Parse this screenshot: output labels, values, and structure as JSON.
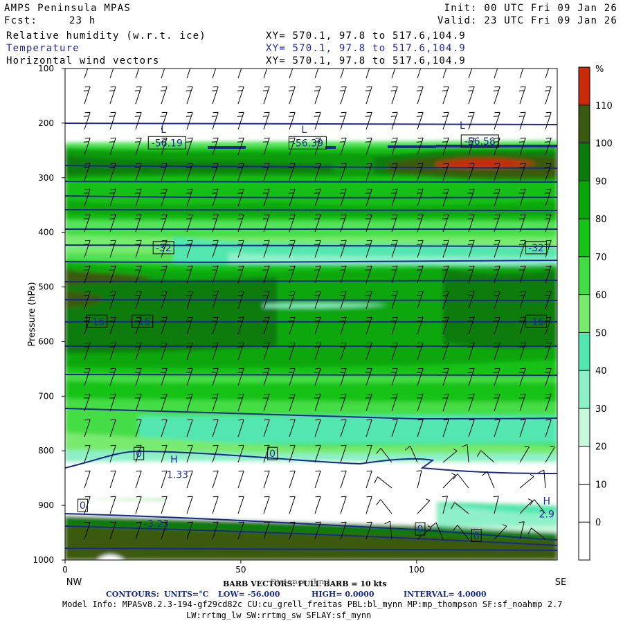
{
  "header": {
    "model": "AMPS Peninsula MPAS",
    "fcst_label": "Fcst:",
    "fcst_value": "23 h",
    "init": "Init: 00 UTC Fri 09 Jan 26",
    "valid": "Valid: 23 UTC Fri 09 Jan 26",
    "fields": [
      {
        "name": "Relative humidity (w.r.t. ice)",
        "xy": "XY= 570.1, 97.8 to 517.6,104.9"
      },
      {
        "name": "Temperature",
        "xy": "XY= 570.1, 97.8 to 517.6,104.9"
      },
      {
        "name": "Horizontal wind vectors",
        "xy": "XY= 570.1, 97.8 to 517.6,104.9"
      }
    ]
  },
  "chart_data": {
    "type": "heatmap",
    "ylabel": "Pressure (hPa)",
    "xlabel": "Distance (km)",
    "x_ticks": [
      0,
      50,
      100
    ],
    "xlim": [
      0,
      140
    ],
    "y_ticks": [
      100,
      200,
      300,
      400,
      500,
      600,
      700,
      800,
      900,
      1000
    ],
    "ylim": [
      1000,
      100
    ],
    "x_end_labels": {
      "left": "NW",
      "right": "SE"
    },
    "colorbar": {
      "unit": "%",
      "ticks": [
        0,
        10,
        20,
        30,
        40,
        50,
        60,
        70,
        80,
        90,
        100,
        110
      ],
      "colors": [
        "#ffffff",
        "#ffffff",
        "#ffffff",
        "#c8f7dc",
        "#8ef0c8",
        "#52e6b0",
        "#78ea6e",
        "#42dd42",
        "#16c416",
        "#07a707",
        "#0b7b0b",
        "#3a5a10",
        "#c82a0a"
      ]
    },
    "temperature_contours": {
      "units": "°C",
      "low": -56.0,
      "high": 0.0,
      "interval": 4.0,
      "labels": [
        {
          "text": "-56.19",
          "x": 29,
          "p": 236
        },
        {
          "text": "-56.39",
          "x": 69,
          "p": 236
        },
        {
          "text": "-56.58",
          "x": 118,
          "p": 233
        },
        {
          "text": "-32",
          "x": 28,
          "p": 428
        },
        {
          "text": "-32",
          "x": 134,
          "p": 428
        },
        {
          "text": "-16",
          "x": 9,
          "p": 563
        },
        {
          "text": "-16",
          "x": 22,
          "p": 563
        },
        {
          "text": "-16",
          "x": 134,
          "p": 563
        },
        {
          "text": "0",
          "x": 21,
          "p": 805
        },
        {
          "text": "0",
          "x": 59,
          "p": 805
        },
        {
          "text": "0",
          "x": 5,
          "p": 900
        },
        {
          "text": "0",
          "x": 101,
          "p": 943
        },
        {
          "text": "0",
          "x": 117,
          "p": 955
        }
      ],
      "highs_lows": [
        {
          "mark": "L",
          "x": 28,
          "p": 218
        },
        {
          "mark": "L",
          "x": 68,
          "p": 218
        },
        {
          "mark": "L",
          "x": 113,
          "p": 210
        },
        {
          "mark": "H",
          "x": 31,
          "p": 822
        },
        {
          "mark": "H",
          "x": 137,
          "p": 898
        }
      ],
      "extrema_values": [
        {
          "text": "1.33",
          "x": 32,
          "p": 850
        },
        {
          "text": "-3.23",
          "x": 26,
          "p": 940
        },
        {
          "text": "2.9",
          "x": 137,
          "p": 922
        }
      ]
    }
  },
  "footer": {
    "barb_line": "BARB VECTORS: FULL BARB = 10 kts",
    "contours_label": "CONTOURS:",
    "units": "UNITS=°C",
    "low": "LOW= -56.000",
    "high": "HIGH= 0.0000",
    "interval": "INTERVAL= 4.0000",
    "model_info_1": "Model Info: MPASv8.2.3-194-gf29cd82c CU:cu_grell_freitas PBL:bl_mynn MP:mp_thompson SF:sf_noahmp 2.7",
    "model_info_2": "LW:rrtmg_lw SW:rrtmg_sw SFLAY:sf_mynn"
  }
}
